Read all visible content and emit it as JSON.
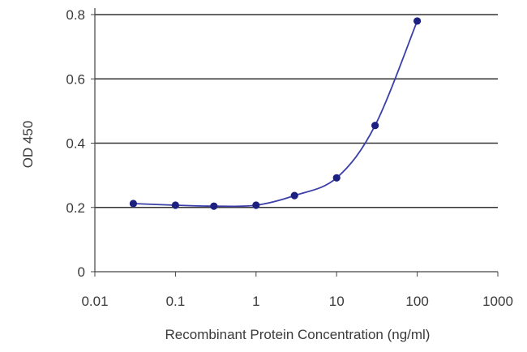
{
  "chart_data": {
    "type": "line",
    "xlabel": "Recombinant Protein Concentration (ng/ml)",
    "ylabel": "OD 450",
    "x_scale": "log",
    "xlim": [
      0.01,
      1000
    ],
    "ylim": [
      0,
      0.8
    ],
    "x_ticks": [
      "0.01",
      "0.1",
      "1",
      "10",
      "100",
      "1000"
    ],
    "y_ticks": [
      "0",
      "0.2",
      "0.4",
      "0.6",
      "0.8"
    ],
    "grid": "horizontal",
    "series": [
      {
        "x": [
          0.03,
          0.1,
          0.3,
          1,
          3,
          10,
          30,
          100
        ],
        "y": [
          0.212,
          0.207,
          0.204,
          0.207,
          0.237,
          0.292,
          0.455,
          0.78
        ]
      }
    ],
    "colors": {
      "line": "#3b3fa8",
      "marker": "#1c2080",
      "grid": "#333333",
      "axis": "#444444"
    }
  }
}
